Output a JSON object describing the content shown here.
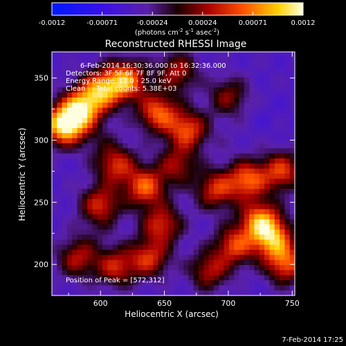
{
  "chart_data": {
    "type": "heatmap",
    "title": "Reconstructed RHESSI Image",
    "xlabel": "Heliocentric X (arcsec)",
    "ylabel": "Heliocentric Y (arcsec)",
    "xlim": [
      562,
      752
    ],
    "ylim": [
      175,
      371
    ],
    "x_ticks": [
      "600",
      "650",
      "700",
      "750"
    ],
    "y_ticks": [
      "200",
      "250",
      "300",
      "350"
    ],
    "colorbar": {
      "range": [
        -0.0012,
        0.0012
      ],
      "ticks": [
        "-0.0012",
        "-0.00071",
        "-0.00024",
        "0.00024",
        "0.00071",
        "0.0012"
      ],
      "label": "(photons cm",
      "label_exp1": "-2",
      "label_mid": " s",
      "label_exp2": "-1",
      "label_mid2": " asec",
      "label_exp3": "-2",
      "label_end": ")"
    },
    "annotations": {
      "time": "6-Feb-2014 16:30:36.000 to 16:32:36.000",
      "detectors": "Detectors: 3F 5F 6F 7F 8F 9F, Att 0",
      "energy": "Energy Range: 12.0 - 25.0 keV",
      "clean": "Clean     Total counts: 5.38E+03",
      "peak": "Position of Peak = [572,312]"
    },
    "blobs": [
      {
        "x": 572,
        "y": 312,
        "v": 1.0
      },
      {
        "x": 585,
        "y": 325,
        "v": 0.7
      },
      {
        "x": 600,
        "y": 340,
        "v": 0.65
      },
      {
        "x": 620,
        "y": 348,
        "v": 0.7
      },
      {
        "x": 645,
        "y": 322,
        "v": 0.55
      },
      {
        "x": 668,
        "y": 308,
        "v": 0.5
      },
      {
        "x": 635,
        "y": 262,
        "v": 0.55
      },
      {
        "x": 612,
        "y": 280,
        "v": 0.4
      },
      {
        "x": 600,
        "y": 248,
        "v": 0.4
      },
      {
        "x": 648,
        "y": 232,
        "v": 0.4
      },
      {
        "x": 638,
        "y": 205,
        "v": 0.4
      },
      {
        "x": 612,
        "y": 198,
        "v": 0.35
      },
      {
        "x": 582,
        "y": 205,
        "v": 0.3
      },
      {
        "x": 690,
        "y": 260,
        "v": 0.4
      },
      {
        "x": 715,
        "y": 268,
        "v": 0.55
      },
      {
        "x": 725,
        "y": 235,
        "v": 0.65
      },
      {
        "x": 735,
        "y": 220,
        "v": 0.6
      },
      {
        "x": 745,
        "y": 200,
        "v": 0.5
      },
      {
        "x": 742,
        "y": 275,
        "v": 0.45
      },
      {
        "x": 705,
        "y": 215,
        "v": 0.45
      },
      {
        "x": 660,
        "y": 355,
        "v": 0.3
      },
      {
        "x": 700,
        "y": 335,
        "v": 0.2
      },
      {
        "x": 685,
        "y": 195,
        "v": 0.3
      },
      {
        "x": 660,
        "y": 280,
        "v": 0.25
      },
      {
        "x": 700,
        "y": 300,
        "v": -0.25
      },
      {
        "x": 600,
        "y": 300,
        "v": -0.15
      },
      {
        "x": 690,
        "y": 345,
        "v": -0.3
      },
      {
        "x": 670,
        "y": 245,
        "v": -0.3
      },
      {
        "x": 730,
        "y": 320,
        "v": -0.35
      },
      {
        "x": 595,
        "y": 225,
        "v": -0.2
      }
    ]
  },
  "timestamp": "7-Feb-2014 17:25"
}
